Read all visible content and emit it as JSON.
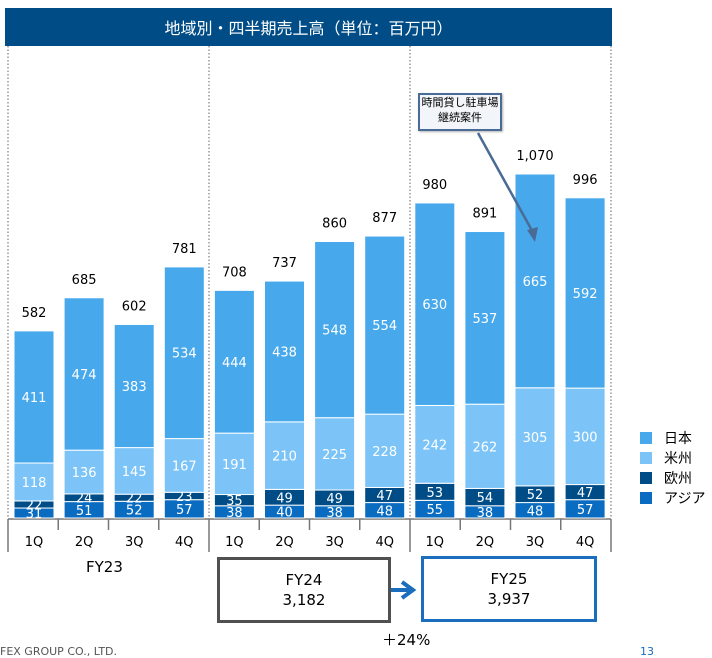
{
  "header": {
    "title": "地域別・四半期売上高（単位：百万円）"
  },
  "chart_data": {
    "type": "bar",
    "stacked": true,
    "title": "地域別・四半期売上高（単位：百万円）",
    "xlabel": "",
    "ylabel": "",
    "ylim": [
      0,
      1100
    ],
    "grid": false,
    "legend_position": "right",
    "categories": [
      "1Q",
      "2Q",
      "3Q",
      "4Q",
      "1Q",
      "2Q",
      "3Q",
      "4Q",
      "1Q",
      "2Q",
      "3Q",
      "4Q"
    ],
    "fiscal_years": [
      {
        "label": "FY23",
        "quarters": 4
      },
      {
        "label": "FY24",
        "quarters": 4
      },
      {
        "label": "FY25",
        "quarters": 4
      }
    ],
    "series": [
      {
        "name": "アジア",
        "color": "#0A6CC0",
        "values": [
          31,
          51,
          52,
          57,
          38,
          40,
          38,
          48,
          55,
          38,
          48,
          57
        ]
      },
      {
        "name": "欧州",
        "color": "#004C87",
        "values": [
          22,
          24,
          22,
          23,
          35,
          49,
          49,
          47,
          53,
          54,
          52,
          47
        ]
      },
      {
        "name": "米州",
        "color": "#7CC4F8",
        "values": [
          118,
          136,
          145,
          167,
          191,
          210,
          225,
          228,
          242,
          262,
          305,
          300
        ]
      },
      {
        "name": "日本",
        "color": "#47A9EC",
        "values": [
          411,
          474,
          383,
          534,
          444,
          438,
          548,
          554,
          630,
          537,
          665,
          592
        ]
      }
    ],
    "totals": [
      "582",
      "685",
      "602",
      "781",
      "708",
      "737",
      "860",
      "877",
      "980",
      "891",
      "1,070",
      "996"
    ],
    "annotation": {
      "text_line1": "時間貸し駐車場",
      "text_line2": "継続案件",
      "target_index": 10,
      "target_series": "日本"
    }
  },
  "legend": [
    {
      "label": "日本",
      "color": "#47A9EC"
    },
    {
      "label": "米州",
      "color": "#7CC4F8"
    },
    {
      "label": "欧州",
      "color": "#004C87"
    },
    {
      "label": "アジア",
      "color": "#0A6CC0"
    }
  ],
  "summary": {
    "fy23_label": "FY23",
    "fy24": {
      "label": "FY24",
      "value": "3,182"
    },
    "fy25": {
      "label": "FY25",
      "value": "3,937"
    },
    "growth": "＋24%"
  },
  "footer": {
    "company": "FEX GROUP CO., LTD.",
    "page": "13"
  }
}
